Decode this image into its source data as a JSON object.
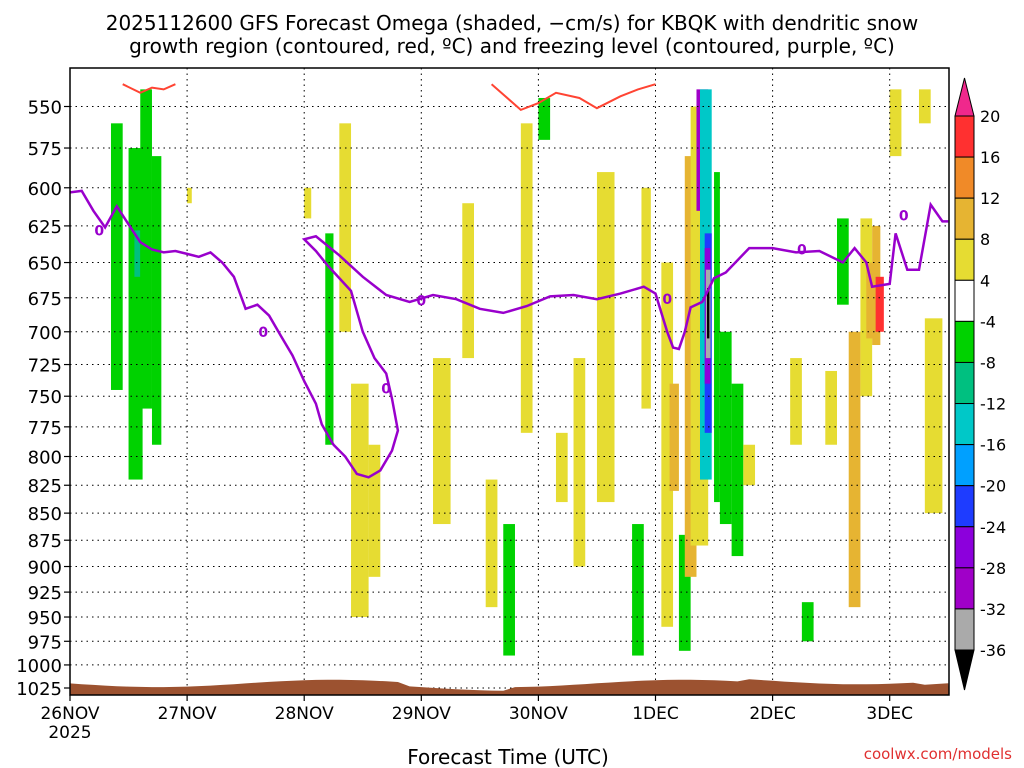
{
  "chart_data": {
    "type": "heatmap",
    "title_lines": [
      "2025112600 GFS Forecast Omega (shaded, −cm/s) for KBQK with dendritic snow",
      "growth region (contoured, red, ºC) and freezing level (contoured, purple, ºC)"
    ],
    "xlabel": "Forecast Time (UTC)",
    "watermark": "coolwx.com/models",
    "x_axis": {
      "range_days": [
        0,
        7.5
      ],
      "ticks": [
        {
          "day": 0,
          "label": "26NOV",
          "sublabel": "2025"
        },
        {
          "day": 1,
          "label": "27NOV"
        },
        {
          "day": 2,
          "label": "28NOV"
        },
        {
          "day": 3,
          "label": "29NOV"
        },
        {
          "day": 4,
          "label": "30NOV"
        },
        {
          "day": 5,
          "label": "1DEC"
        },
        {
          "day": 6,
          "label": "2DEC"
        },
        {
          "day": 7,
          "label": "3DEC"
        }
      ]
    },
    "y_axis": {
      "unit": "hPa",
      "range": [
        1035,
        535
      ],
      "ticks": [
        550,
        575,
        600,
        625,
        650,
        675,
        700,
        725,
        750,
        775,
        800,
        825,
        850,
        875,
        900,
        925,
        950,
        975,
        1000,
        1025
      ]
    },
    "grid": true,
    "colorbar": {
      "labels": [
        "20",
        "16",
        "12",
        "8",
        "4",
        "-4",
        "-8",
        "-12",
        "-16",
        "-20",
        "-24",
        "-28",
        "-32",
        "-36"
      ],
      "bands": [
        {
          "range": [
            16,
            20
          ],
          "color": "#ff3030"
        },
        {
          "range": [
            12,
            16
          ],
          "color": "#f08a28"
        },
        {
          "range": [
            8,
            12
          ],
          "color": "#e6b432"
        },
        {
          "range": [
            4,
            8
          ],
          "color": "#e6dc32"
        },
        {
          "range": [
            -4,
            4
          ],
          "color": "#ffffff"
        },
        {
          "range": [
            -8,
            -4
          ],
          "color": "#00d200"
        },
        {
          "range": [
            -12,
            -8
          ],
          "color": "#00c080"
        },
        {
          "range": [
            -16,
            -12
          ],
          "color": "#00c8c8"
        },
        {
          "range": [
            -20,
            -16
          ],
          "color": "#00a0ff"
        },
        {
          "range": [
            -24,
            -20
          ],
          "color": "#1e3cff"
        },
        {
          "range": [
            -28,
            -24
          ],
          "color": "#8c00dc"
        },
        {
          "range": [
            -32,
            -28
          ],
          "color": "#a000c8"
        },
        {
          "range": [
            -36,
            -32
          ],
          "color": "#aaaaaa"
        }
      ],
      "top_arrow_color": "#f0288c",
      "bottom_arrow_color": "#000000"
    },
    "freezing_level": {
      "color": "#9900cc",
      "label": "0",
      "points": [
        [
          0,
          603
        ],
        [
          0.1,
          602
        ],
        [
          0.2,
          615
        ],
        [
          0.3,
          626
        ],
        [
          0.4,
          612
        ],
        [
          0.5,
          624
        ],
        [
          0.6,
          636
        ],
        [
          0.7,
          641
        ],
        [
          0.8,
          643
        ],
        [
          0.9,
          642
        ],
        [
          1,
          644
        ],
        [
          1.1,
          646
        ],
        [
          1.2,
          643
        ],
        [
          1.3,
          650
        ],
        [
          1.4,
          660
        ],
        [
          1.5,
          683
        ],
        [
          1.6,
          680
        ],
        [
          1.7,
          688
        ],
        [
          1.8,
          703
        ],
        [
          1.9,
          718
        ],
        [
          2,
          738
        ],
        [
          2.1,
          756
        ],
        [
          2.15,
          773
        ],
        [
          2.25,
          790
        ],
        [
          2.35,
          800
        ],
        [
          2.45,
          815
        ],
        [
          2.55,
          818
        ],
        [
          2.65,
          812
        ],
        [
          2.75,
          795
        ],
        [
          2.8,
          778
        ],
        [
          2.75,
          752
        ],
        [
          2.7,
          732
        ],
        [
          2.6,
          720
        ],
        [
          2.5,
          700
        ],
        [
          2.4,
          670
        ],
        [
          2.2,
          652
        ],
        [
          2.1,
          642
        ],
        [
          2.0,
          634
        ],
        [
          2.1,
          632
        ],
        [
          2.3,
          645
        ],
        [
          2.5,
          660
        ],
        [
          2.7,
          673
        ],
        [
          2.9,
          678
        ],
        [
          3.1,
          673
        ],
        [
          3.3,
          676
        ],
        [
          3.5,
          683
        ],
        [
          3.7,
          686
        ],
        [
          3.9,
          681
        ],
        [
          4.1,
          674
        ],
        [
          4.3,
          673
        ],
        [
          4.5,
          676
        ],
        [
          4.7,
          672
        ],
        [
          4.9,
          667
        ],
        [
          5.0,
          672
        ],
        [
          5.1,
          700
        ],
        [
          5.15,
          712
        ],
        [
          5.2,
          713
        ],
        [
          5.25,
          700
        ],
        [
          5.3,
          682
        ],
        [
          5.4,
          678
        ],
        [
          5.5,
          661
        ],
        [
          5.6,
          657
        ],
        [
          5.8,
          640
        ],
        [
          6.0,
          640
        ],
        [
          6.2,
          643
        ],
        [
          6.4,
          642
        ],
        [
          6.6,
          650
        ],
        [
          6.7,
          640
        ],
        [
          6.8,
          650
        ],
        [
          6.85,
          667
        ],
        [
          7.0,
          665
        ],
        [
          7.05,
          630
        ],
        [
          7.15,
          655
        ],
        [
          7.25,
          655
        ],
        [
          7.35,
          611
        ],
        [
          7.45,
          622
        ],
        [
          7.5,
          622
        ]
      ]
    },
    "dgz_contour": {
      "color": "#ff4433",
      "segments": [
        [
          [
            0.45,
            537
          ],
          [
            0.6,
            542
          ],
          [
            0.7,
            539
          ],
          [
            0.8,
            540
          ],
          [
            0.9,
            537
          ]
        ],
        [
          [
            3.6,
            537
          ],
          [
            3.7,
            543
          ],
          [
            3.85,
            552
          ],
          [
            4.0,
            548
          ],
          [
            4.15,
            542
          ],
          [
            4.35,
            545
          ],
          [
            4.5,
            551
          ],
          [
            4.7,
            544
          ],
          [
            4.85,
            540
          ],
          [
            5.0,
            537
          ]
        ]
      ]
    },
    "shading_cells": [
      {
        "x": [
          0.35,
          0.45
        ],
        "p": [
          560,
          745
        ],
        "v": -6
      },
      {
        "x": [
          0.5,
          0.62
        ],
        "p": [
          575,
          820
        ],
        "v": -6
      },
      {
        "x": [
          0.55,
          0.6
        ],
        "p": [
          628,
          660
        ],
        "v": -10
      },
      {
        "x": [
          0.6,
          0.7
        ],
        "p": [
          540,
          760
        ],
        "v": -6
      },
      {
        "x": [
          0.7,
          0.78
        ],
        "p": [
          580,
          790
        ],
        "v": -6
      },
      {
        "x": [
          1.0,
          1.04
        ],
        "p": [
          600,
          610
        ],
        "v": 5
      },
      {
        "x": [
          2.0,
          2.06
        ],
        "p": [
          600,
          620
        ],
        "v": 5
      },
      {
        "x": [
          2.18,
          2.25
        ],
        "p": [
          630,
          790
        ],
        "v": -6
      },
      {
        "x": [
          2.3,
          2.4
        ],
        "p": [
          560,
          700
        ],
        "v": 5
      },
      {
        "x": [
          2.4,
          2.55
        ],
        "p": [
          740,
          950
        ],
        "v": 5
      },
      {
        "x": [
          2.55,
          2.65
        ],
        "p": [
          790,
          910
        ],
        "v": 5
      },
      {
        "x": [
          3.1,
          3.25
        ],
        "p": [
          720,
          860
        ],
        "v": 5
      },
      {
        "x": [
          3.35,
          3.45
        ],
        "p": [
          610,
          720
        ],
        "v": 5
      },
      {
        "x": [
          3.55,
          3.65
        ],
        "p": [
          820,
          940
        ],
        "v": 5
      },
      {
        "x": [
          3.7,
          3.8
        ],
        "p": [
          860,
          990
        ],
        "v": -6
      },
      {
        "x": [
          3.85,
          3.95
        ],
        "p": [
          560,
          780
        ],
        "v": 5
      },
      {
        "x": [
          4.0,
          4.1
        ],
        "p": [
          545,
          570
        ],
        "v": -6
      },
      {
        "x": [
          4.15,
          4.25
        ],
        "p": [
          780,
          840
        ],
        "v": 5
      },
      {
        "x": [
          4.3,
          4.4
        ],
        "p": [
          720,
          900
        ],
        "v": 5
      },
      {
        "x": [
          4.5,
          4.65
        ],
        "p": [
          590,
          840
        ],
        "v": 5
      },
      {
        "x": [
          4.8,
          4.9
        ],
        "p": [
          860,
          990
        ],
        "v": -6
      },
      {
        "x": [
          4.88,
          4.96
        ],
        "p": [
          600,
          760
        ],
        "v": 5
      },
      {
        "x": [
          5.05,
          5.15
        ],
        "p": [
          650,
          960
        ],
        "v": 5
      },
      {
        "x": [
          5.12,
          5.2
        ],
        "p": [
          740,
          830
        ],
        "v": 10
      },
      {
        "x": [
          5.2,
          5.3
        ],
        "p": [
          870,
          985
        ],
        "v": -6
      },
      {
        "x": [
          5.25,
          5.35
        ],
        "p": [
          580,
          910
        ],
        "v": 10
      },
      {
        "x": [
          5.3,
          5.45
        ],
        "p": [
          550,
          880
        ],
        "v": 5
      },
      {
        "x": [
          5.35,
          5.45
        ],
        "p": [
          540,
          615
        ],
        "v": -30
      },
      {
        "x": [
          5.38,
          5.48
        ],
        "p": [
          540,
          820
        ],
        "v": -14
      },
      {
        "x": [
          5.42,
          5.48
        ],
        "p": [
          630,
          780
        ],
        "v": -22
      },
      {
        "x": [
          5.42,
          5.47
        ],
        "p": [
          640,
          740
        ],
        "v": -26
      },
      {
        "x": [
          5.43,
          5.47
        ],
        "p": [
          655,
          720
        ],
        "v": -34
      },
      {
        "x": [
          5.44,
          5.46
        ],
        "p": [
          668,
          705
        ],
        "v": -40
      },
      {
        "x": [
          5.5,
          5.55
        ],
        "p": [
          590,
          840
        ],
        "v": -6
      },
      {
        "x": [
          5.55,
          5.65
        ],
        "p": [
          700,
          860
        ],
        "v": -6
      },
      {
        "x": [
          5.65,
          5.75
        ],
        "p": [
          740,
          890
        ],
        "v": -6
      },
      {
        "x": [
          5.75,
          5.85
        ],
        "p": [
          790,
          825
        ],
        "v": 5
      },
      {
        "x": [
          6.15,
          6.25
        ],
        "p": [
          720,
          790
        ],
        "v": 5
      },
      {
        "x": [
          6.25,
          6.35
        ],
        "p": [
          935,
          975
        ],
        "v": -6
      },
      {
        "x": [
          6.45,
          6.55
        ],
        "p": [
          730,
          790
        ],
        "v": 5
      },
      {
        "x": [
          6.55,
          6.65
        ],
        "p": [
          620,
          680
        ],
        "v": -6
      },
      {
        "x": [
          6.65,
          6.75
        ],
        "p": [
          700,
          940
        ],
        "v": 10
      },
      {
        "x": [
          6.75,
          6.85
        ],
        "p": [
          620,
          750
        ],
        "v": 5
      },
      {
        "x": [
          6.8,
          6.88
        ],
        "p": [
          650,
          705
        ],
        "v": 10
      },
      {
        "x": [
          6.85,
          6.92
        ],
        "p": [
          625,
          710
        ],
        "v": 10
      },
      {
        "x": [
          6.88,
          6.95
        ],
        "p": [
          660,
          700
        ],
        "v": 18
      },
      {
        "x": [
          7.0,
          7.1
        ],
        "p": [
          540,
          580
        ],
        "v": 5
      },
      {
        "x": [
          7.25,
          7.35
        ],
        "p": [
          540,
          560
        ],
        "v": 5
      },
      {
        "x": [
          7.3,
          7.45
        ],
        "p": [
          690,
          850
        ],
        "v": 5
      }
    ],
    "terrain_color": "#9c5230"
  }
}
